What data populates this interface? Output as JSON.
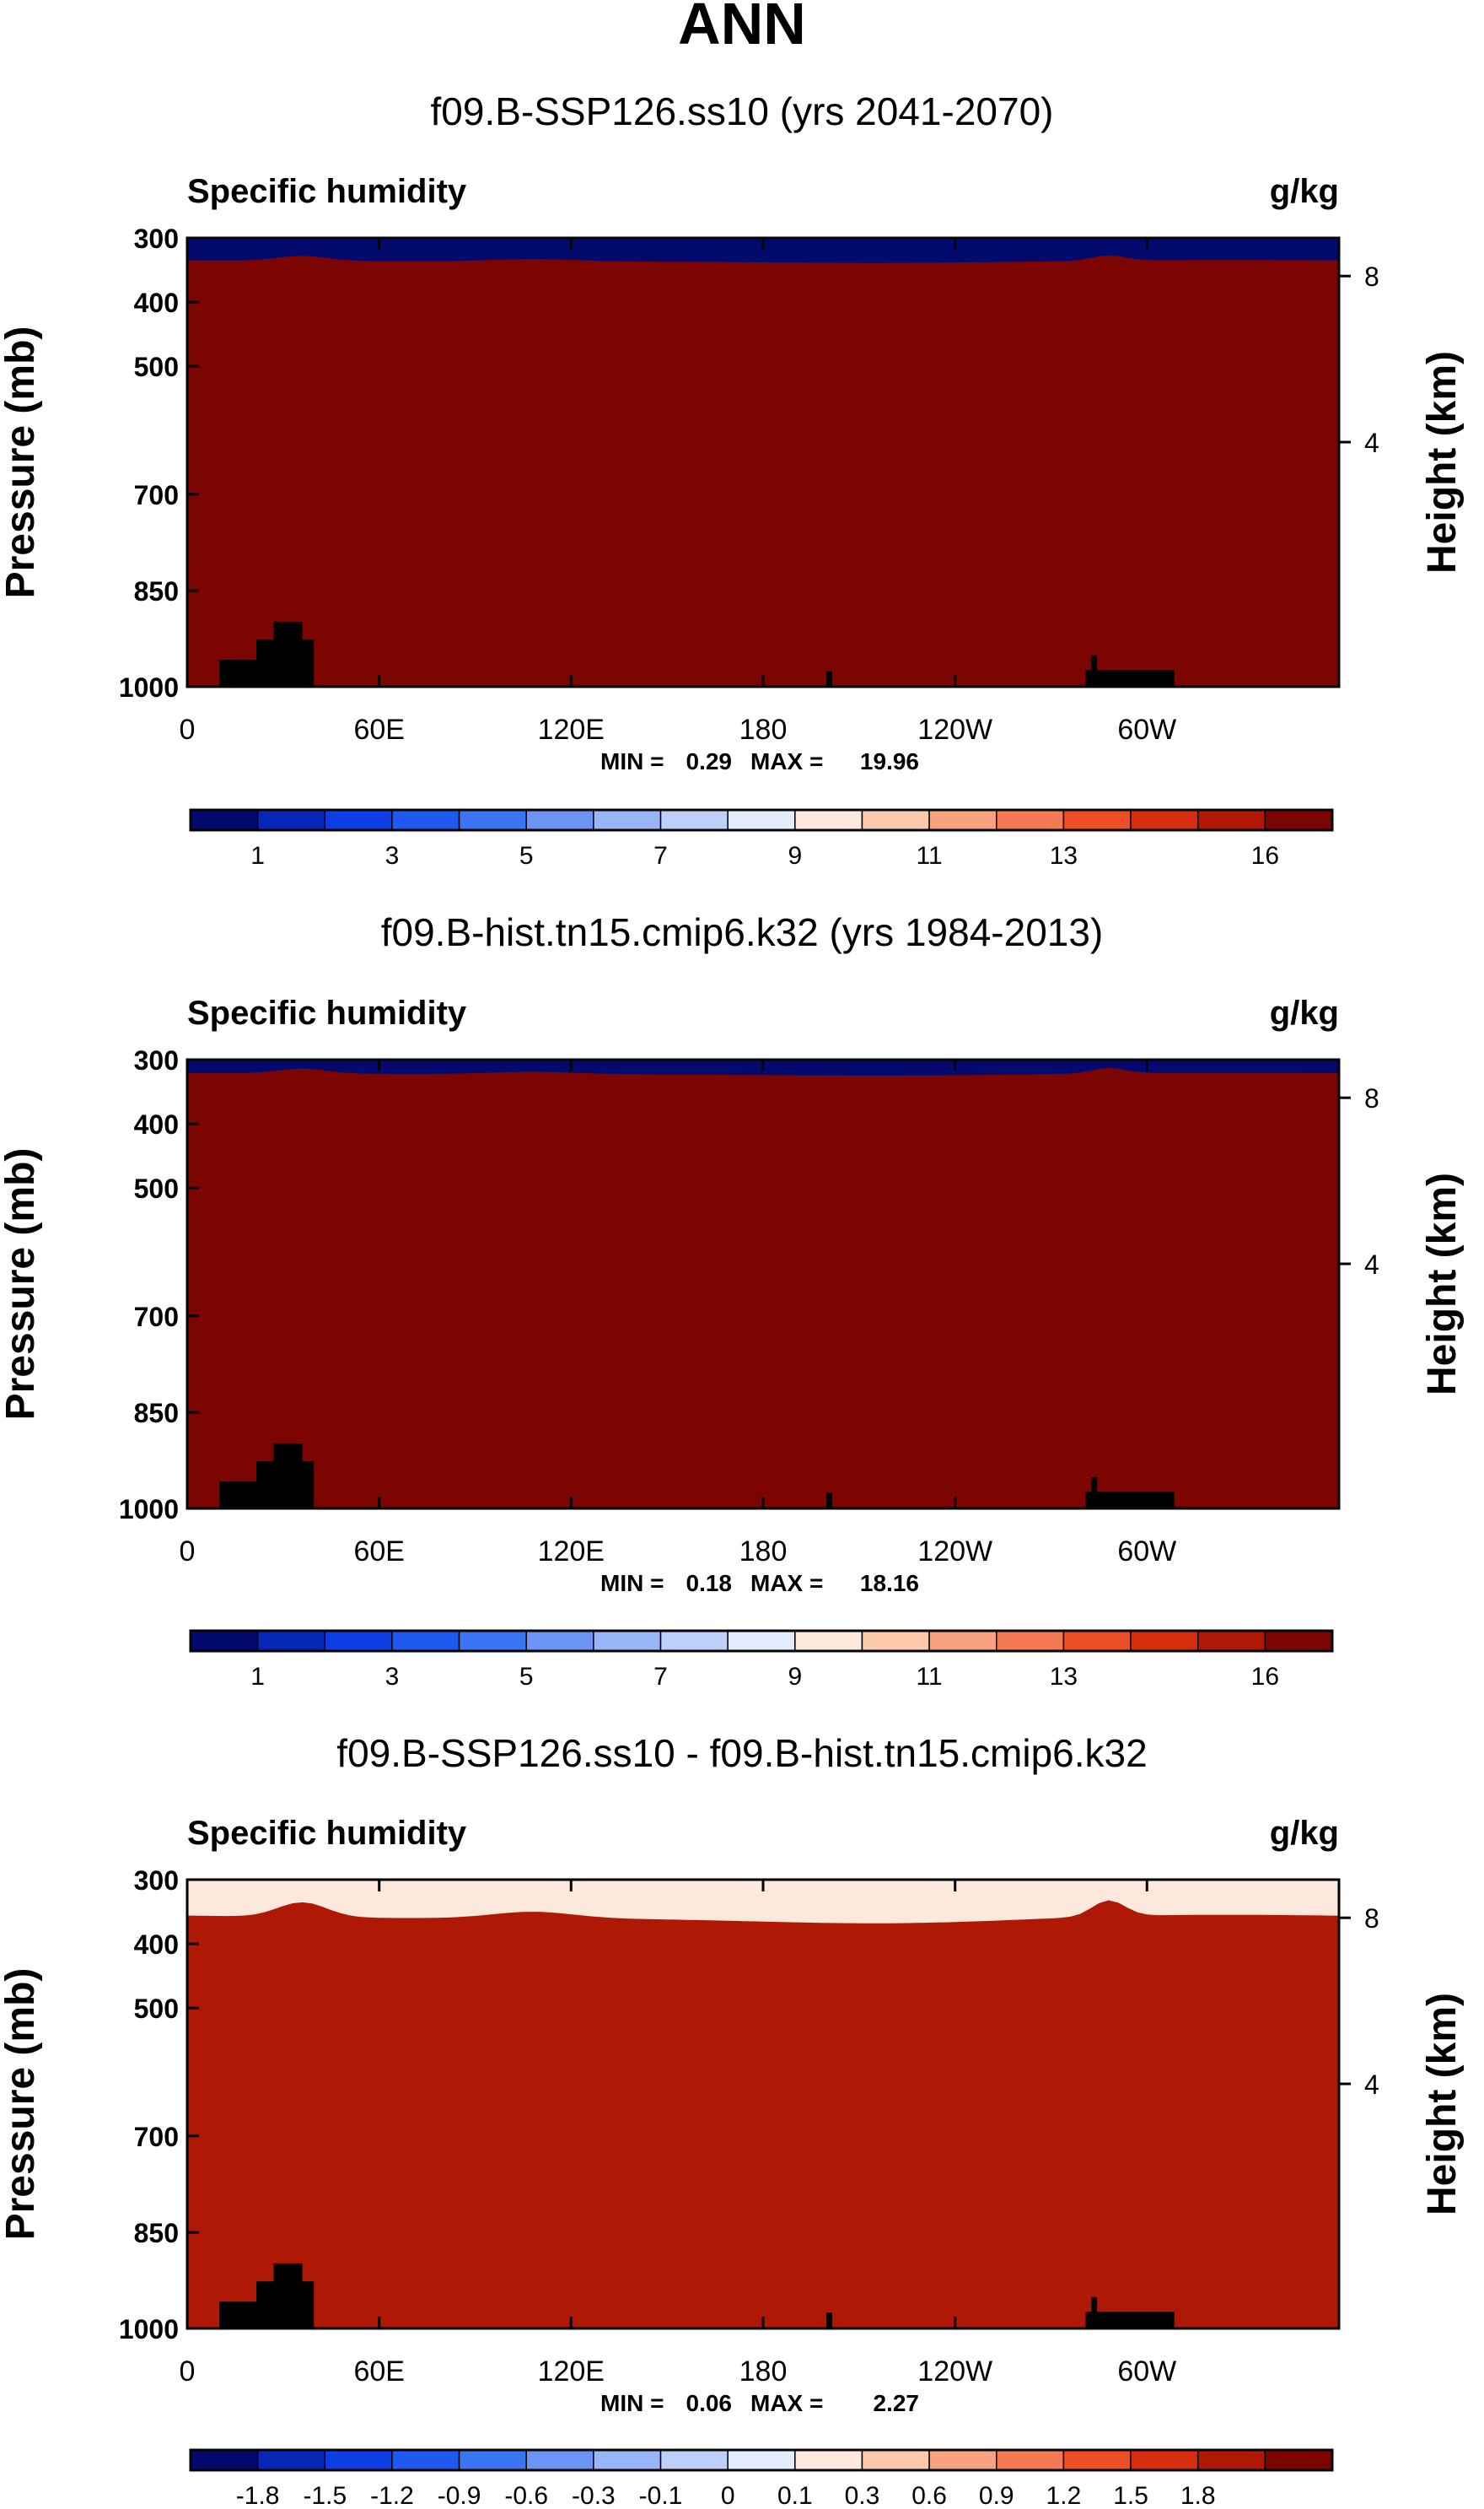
{
  "figure_title": "ANN",
  "colors": {
    "sequential": [
      "#020a6e",
      "#0626b8",
      "#0d3ee5",
      "#1e5af0",
      "#3a74f2",
      "#6a95f4",
      "#98b6f7",
      "#bcd0fa",
      "#e2ecfc",
      "#fde8dc",
      "#fcc9ac",
      "#f9a37e",
      "#f57a54",
      "#ee4e26",
      "#d62d0f",
      "#b01806",
      "#7c0502"
    ],
    "diverging": [
      "#020a6e",
      "#0626b8",
      "#0d3ee5",
      "#1e5af0",
      "#3a74f2",
      "#6a95f4",
      "#98b6f7",
      "#bcd0fa",
      "#e2ecfc",
      "#fde8dc",
      "#fcc9ac",
      "#f9a37e",
      "#f57a54",
      "#ee4e26",
      "#d62d0f",
      "#b01806",
      "#7c0502"
    ],
    "topography": "#000000"
  },
  "chart_data": [
    {
      "type": "heatmap",
      "title": "f09.B-SSP126.ss10 (yrs 2041-2070)",
      "left_label": "Specific humidity",
      "right_label": "g/kg",
      "xlabel": "",
      "ylabel": "Pressure (mb)",
      "y2label": "Height (km)",
      "x_ticks": [
        "0",
        "60E",
        "120E",
        "180",
        "120W",
        "60W"
      ],
      "y_ticks": [
        "300",
        "400",
        "500",
        "700",
        "850",
        "1000"
      ],
      "y2_ticks": [
        "8",
        "4"
      ],
      "min_label": "MIN =",
      "min_value": "0.29",
      "max_label": "MAX =",
      "max_value": "19.96",
      "colorbar_labels": [
        "1",
        "3",
        "5",
        "7",
        "9",
        "11",
        "13",
        "16"
      ],
      "palette": "sequential",
      "top_band_count": 0,
      "levels": [
        {
          "base": 0.93,
          "amp": 0.02
        },
        {
          "base": 0.84,
          "amp": 0.04
        },
        {
          "base": 0.75,
          "amp": 0.05
        },
        {
          "base": 0.66,
          "amp": 0.06
        },
        {
          "base": 0.57,
          "amp": 0.07
        },
        {
          "base": 0.49,
          "amp": 0.08
        },
        {
          "base": 0.42,
          "amp": 0.08
        },
        {
          "base": 0.37,
          "amp": 0.08
        },
        {
          "base": 0.33,
          "amp": 0.07
        },
        {
          "base": 0.29,
          "amp": 0.07
        },
        {
          "base": 0.25,
          "amp": 0.06
        },
        {
          "base": 0.21,
          "amp": 0.05
        },
        {
          "base": 0.17,
          "amp": 0.05
        },
        {
          "base": 0.13,
          "amp": 0.04
        },
        {
          "base": 0.09,
          "amp": 0.03
        },
        {
          "base": 0.05,
          "amp": 0.02
        }
      ]
    },
    {
      "type": "heatmap",
      "title": "f09.B-hist.tn15.cmip6.k32 (yrs 1984-2013)",
      "left_label": "Specific humidity",
      "right_label": "g/kg",
      "xlabel": "",
      "ylabel": "Pressure (mb)",
      "y2label": "Height (km)",
      "x_ticks": [
        "0",
        "60E",
        "120E",
        "180",
        "120W",
        "60W"
      ],
      "y_ticks": [
        "300",
        "400",
        "500",
        "700",
        "850",
        "1000"
      ],
      "y2_ticks": [
        "8",
        "4"
      ],
      "min_label": "MIN =",
      "min_value": "0.18",
      "max_label": "MAX =",
      "max_value": "18.16",
      "colorbar_labels": [
        "1",
        "3",
        "5",
        "7",
        "9",
        "11",
        "13",
        "16"
      ],
      "palette": "sequential",
      "top_band_count": 0,
      "levels": [
        {
          "base": 0.9,
          "amp": 0.02
        },
        {
          "base": 0.8,
          "amp": 0.04
        },
        {
          "base": 0.71,
          "amp": 0.05
        },
        {
          "base": 0.62,
          "amp": 0.06
        },
        {
          "base": 0.53,
          "amp": 0.07
        },
        {
          "base": 0.45,
          "amp": 0.08
        },
        {
          "base": 0.39,
          "amp": 0.08
        },
        {
          "base": 0.34,
          "amp": 0.08
        },
        {
          "base": 0.3,
          "amp": 0.07
        },
        {
          "base": 0.26,
          "amp": 0.07
        },
        {
          "base": 0.22,
          "amp": 0.06
        },
        {
          "base": 0.18,
          "amp": 0.05
        },
        {
          "base": 0.14,
          "amp": 0.05
        },
        {
          "base": 0.1,
          "amp": 0.04
        },
        {
          "base": 0.06,
          "amp": 0.03
        },
        {
          "base": 0.03,
          "amp": 0.02
        }
      ]
    },
    {
      "type": "heatmap",
      "title": "f09.B-SSP126.ss10 - f09.B-hist.tn15.cmip6.k32",
      "left_label": "Specific humidity",
      "right_label": "g/kg",
      "xlabel": "",
      "ylabel": "Pressure (mb)",
      "y2label": "Height (km)",
      "x_ticks": [
        "0",
        "60E",
        "120E",
        "180",
        "120W",
        "60W"
      ],
      "y_ticks": [
        "300",
        "400",
        "500",
        "700",
        "850",
        "1000"
      ],
      "y2_ticks": [
        "8",
        "4"
      ],
      "min_label": "MIN =",
      "min_value": "0.06",
      "max_label": "MAX =",
      "max_value": "2.27",
      "colorbar_labels": [
        "-1.8",
        "-1.5",
        "-1.2",
        "-0.9",
        "-0.6",
        "-0.3",
        "-0.1",
        "0",
        "0.1",
        "0.3",
        "0.6",
        "0.9",
        "1.2",
        "1.5",
        "1.8"
      ],
      "palette": "diverging",
      "top_band_count": 9,
      "levels": [
        {
          "base": 0.96,
          "amp": 0.02
        },
        {
          "base": 0.85,
          "amp": 0.06
        },
        {
          "base": 0.62,
          "amp": 0.12
        },
        {
          "base": 0.4,
          "amp": 0.14
        },
        {
          "base": 0.22,
          "amp": 0.12
        },
        {
          "base": 0.08,
          "amp": 0.06
        }
      ]
    }
  ]
}
